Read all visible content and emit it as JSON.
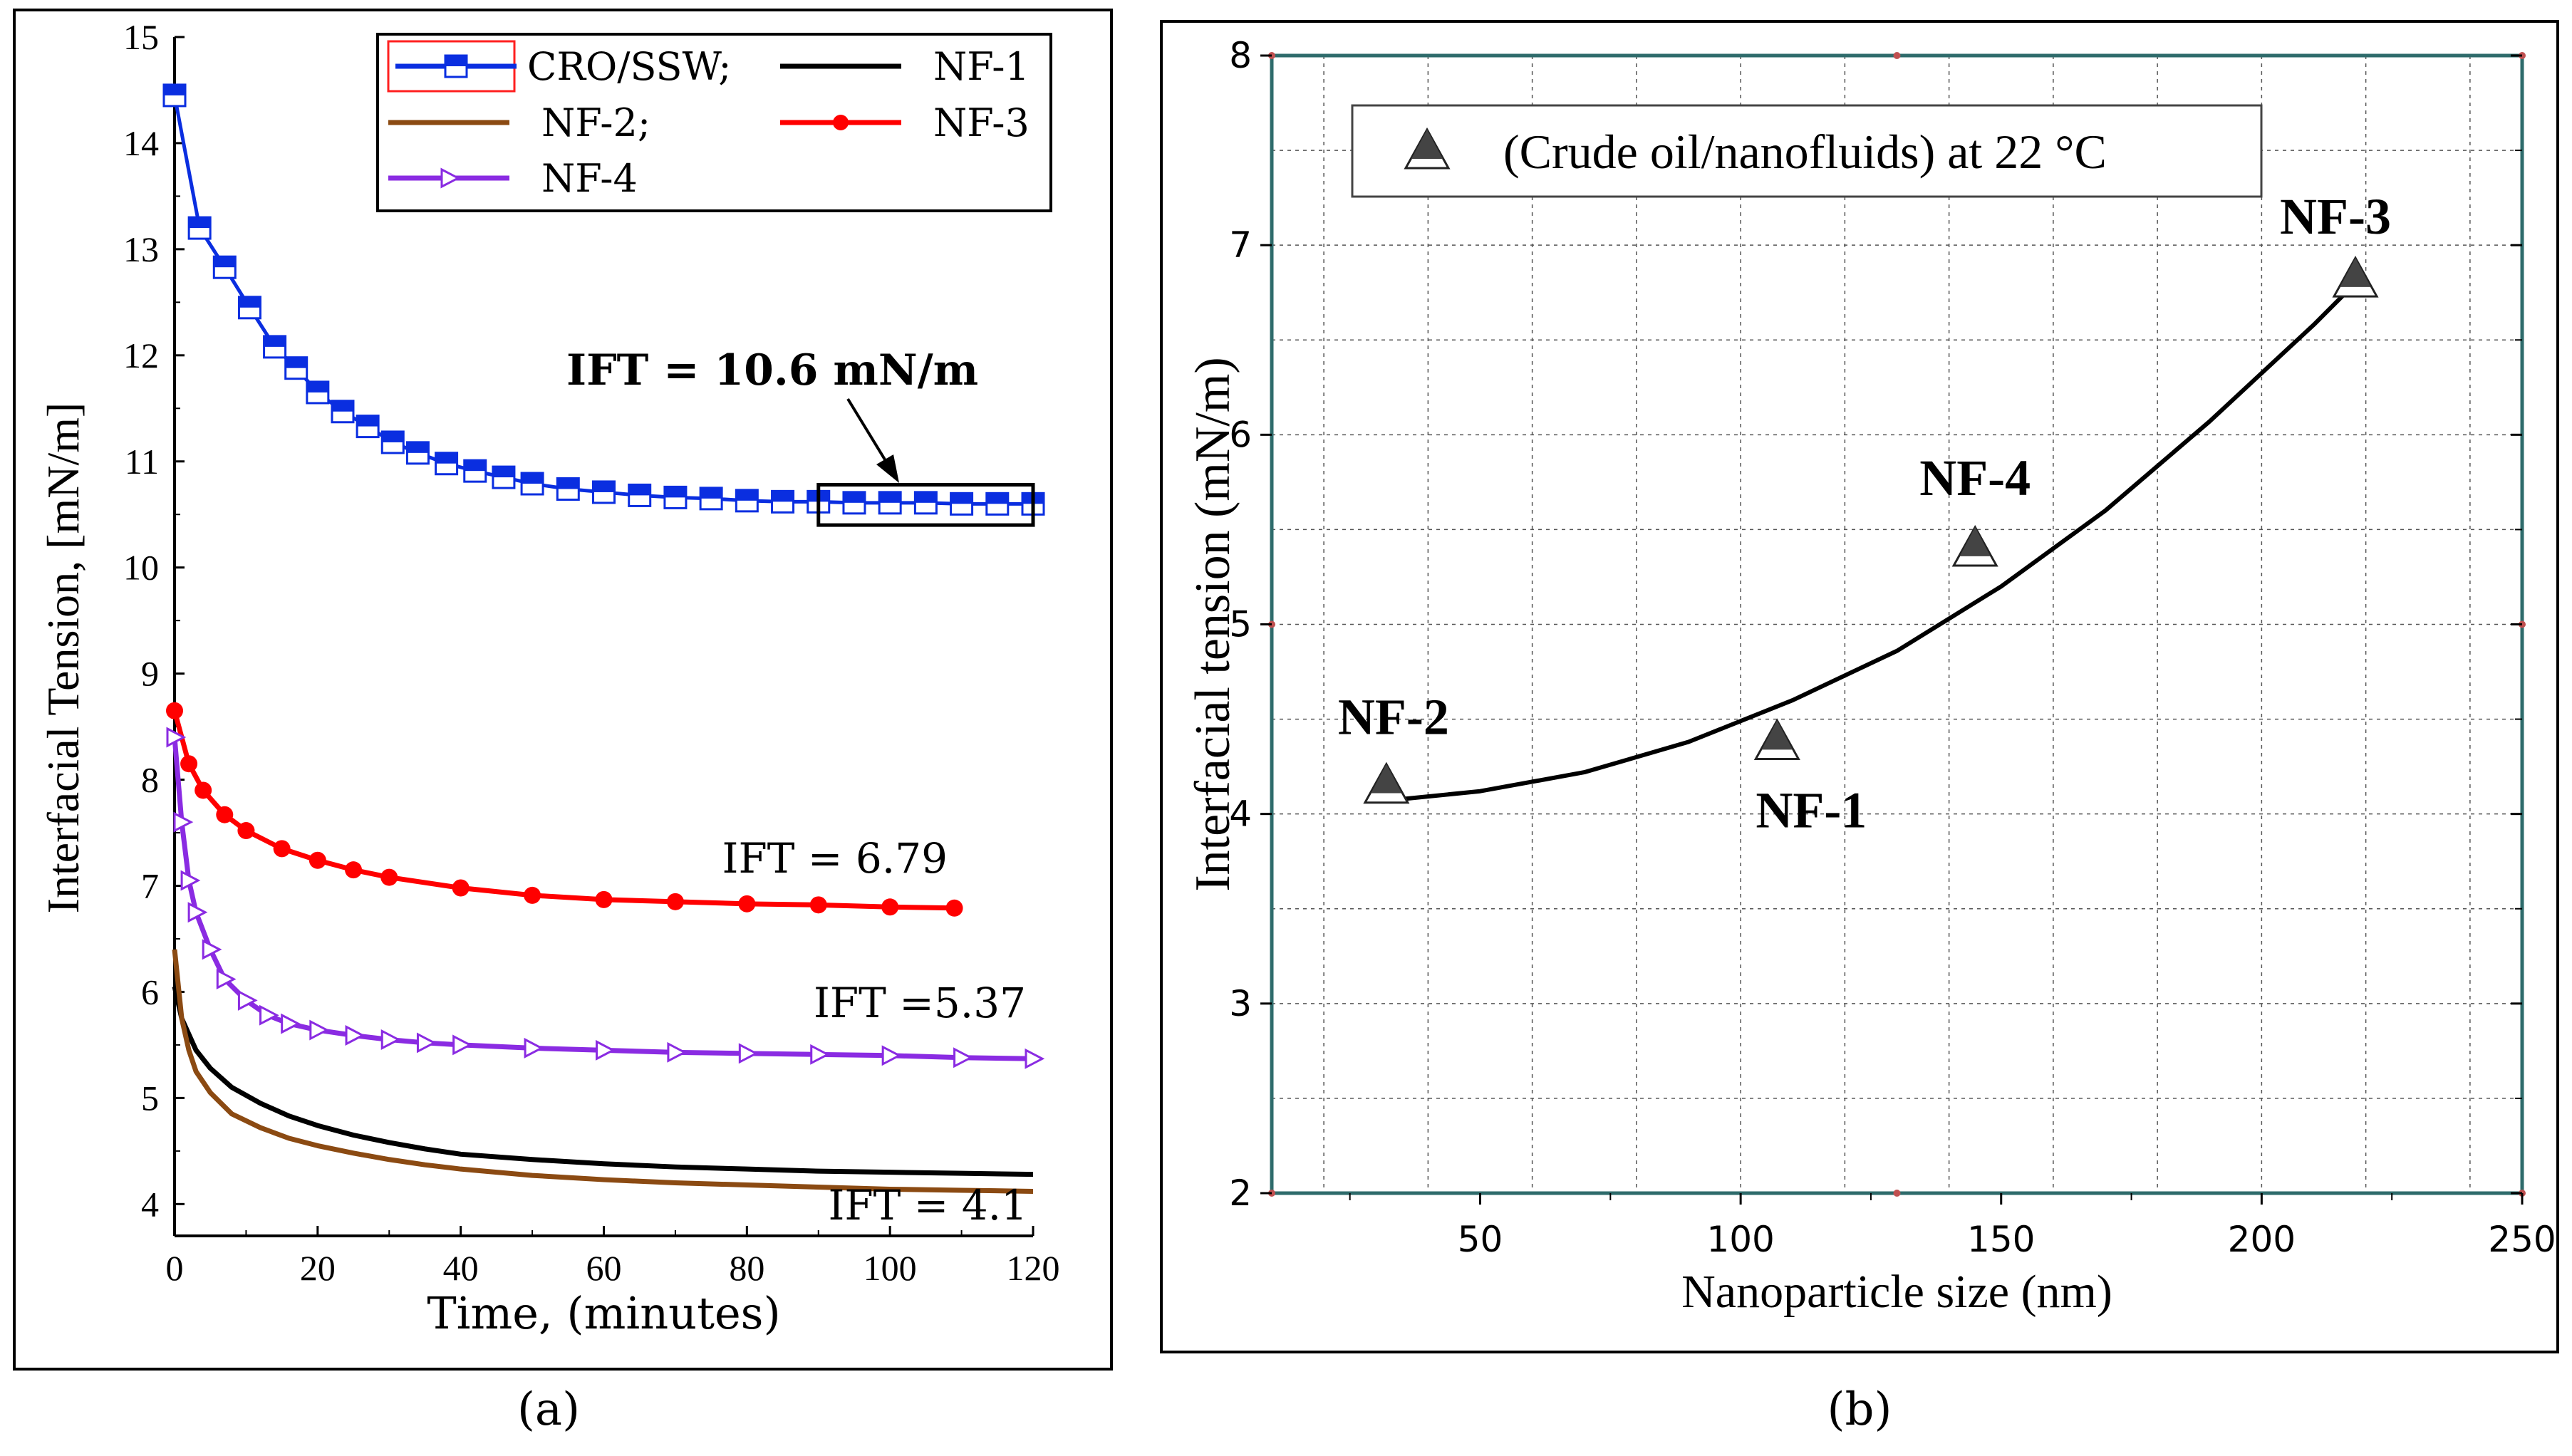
{
  "figure": {
    "label_a": "(a)",
    "label_b": "(b)"
  },
  "chart_data": [
    {
      "id": "a",
      "type": "line",
      "xlabel": "Time, (minutes)",
      "ylabel": "Interfacial Tension, [mN/m]",
      "xlim": [
        0,
        120
      ],
      "ylim": [
        3.7,
        15
      ],
      "xticks": [
        0,
        20,
        40,
        60,
        80,
        100,
        120
      ],
      "yticks": [
        4,
        5,
        6,
        7,
        8,
        9,
        10,
        11,
        12,
        13,
        14,
        15
      ],
      "grid": false,
      "legend_position": "top-right",
      "series": [
        {
          "name": "CRO/SSW;",
          "color": "#0a2ee0",
          "marker": "half-filled-square",
          "x": [
            0,
            3.5,
            7,
            10.5,
            14,
            17,
            20,
            23.5,
            27,
            30.5,
            34,
            38,
            42,
            46,
            50,
            55,
            60,
            65,
            70,
            75,
            80,
            85,
            90,
            95,
            100,
            105,
            110,
            115,
            120
          ],
          "y": [
            14.45,
            13.2,
            12.83,
            12.45,
            12.08,
            11.88,
            11.65,
            11.47,
            11.33,
            11.18,
            11.08,
            10.98,
            10.91,
            10.85,
            10.79,
            10.74,
            10.71,
            10.68,
            10.66,
            10.65,
            10.63,
            10.62,
            10.62,
            10.61,
            10.61,
            10.61,
            10.6,
            10.6,
            10.6
          ]
        },
        {
          "name": "NF-1",
          "color": "#000000",
          "marker": "none",
          "x": [
            0,
            1,
            2,
            3,
            5,
            8,
            12,
            16,
            20,
            25,
            30,
            35,
            40,
            50,
            60,
            70,
            80,
            90,
            100,
            110,
            120
          ],
          "y": [
            6.05,
            5.75,
            5.6,
            5.45,
            5.28,
            5.1,
            4.95,
            4.83,
            4.74,
            4.65,
            4.58,
            4.52,
            4.47,
            4.42,
            4.38,
            4.35,
            4.33,
            4.31,
            4.3,
            4.29,
            4.28
          ]
        },
        {
          "name": "NF-2;",
          "color": "#8b4a12",
          "marker": "none",
          "x": [
            0,
            1,
            2,
            3,
            5,
            8,
            12,
            16,
            20,
            25,
            30,
            35,
            40,
            50,
            60,
            70,
            80,
            90,
            100,
            110,
            120
          ],
          "y": [
            6.4,
            5.75,
            5.45,
            5.25,
            5.05,
            4.85,
            4.72,
            4.62,
            4.55,
            4.48,
            4.42,
            4.37,
            4.33,
            4.27,
            4.23,
            4.2,
            4.18,
            4.16,
            4.14,
            4.13,
            4.12
          ]
        },
        {
          "name": "NF-3",
          "color": "#ff0000",
          "marker": "circle",
          "x": [
            0,
            2,
            4,
            7,
            10,
            15,
            20,
            25,
            30,
            40,
            50,
            60,
            70,
            80,
            90,
            100,
            109
          ],
          "y": [
            8.65,
            8.15,
            7.9,
            7.67,
            7.52,
            7.35,
            7.24,
            7.15,
            7.08,
            6.98,
            6.91,
            6.87,
            6.85,
            6.83,
            6.82,
            6.8,
            6.79
          ]
        },
        {
          "name": "NF-4",
          "color": "#8a2be2",
          "marker": "triangle-right",
          "x": [
            0,
            1,
            2,
            3,
            5,
            7,
            10,
            13,
            16,
            20,
            25,
            30,
            35,
            40,
            50,
            60,
            70,
            80,
            90,
            100,
            110,
            120
          ],
          "y": [
            8.4,
            7.6,
            7.05,
            6.75,
            6.4,
            6.12,
            5.92,
            5.78,
            5.7,
            5.64,
            5.59,
            5.55,
            5.52,
            5.5,
            5.47,
            5.45,
            5.43,
            5.42,
            5.41,
            5.4,
            5.38,
            5.37
          ]
        }
      ],
      "annotations": [
        {
          "text": "IFT = 10.6 mN/m",
          "bold": true
        },
        {
          "text": "IFT = 6.79"
        },
        {
          "text": "IFT =5.37"
        },
        {
          "text": "IFT = 4.1"
        }
      ],
      "box_highlight": {
        "x_range": [
          90,
          120
        ],
        "y_range": [
          10.4,
          10.78
        ]
      }
    },
    {
      "id": "b",
      "type": "scatter",
      "xlabel": "Nanoparticle size (nm)",
      "ylabel": "Interfacial tension (mN/m)",
      "xlim": [
        10,
        250
      ],
      "ylim": [
        2,
        8
      ],
      "xticks": [
        50,
        100,
        150,
        200,
        250
      ],
      "yticks": [
        2,
        3,
        4,
        5,
        6,
        7,
        8
      ],
      "grid": true,
      "legend_position": "top-left",
      "legend": "(Crude oil/nanofluids) at 22 °C",
      "points": [
        {
          "label": "NF-2",
          "x": 32,
          "y": 4.15
        },
        {
          "label": "NF-1",
          "x": 107,
          "y": 4.38
        },
        {
          "label": "NF-4",
          "x": 145,
          "y": 5.4
        },
        {
          "label": "NF-3",
          "x": 218,
          "y": 6.82
        }
      ],
      "fit_curve": {
        "x": [
          32,
          50,
          70,
          90,
          110,
          130,
          150,
          170,
          190,
          210,
          218
        ],
        "y": [
          4.07,
          4.12,
          4.22,
          4.38,
          4.6,
          4.86,
          5.2,
          5.6,
          6.07,
          6.58,
          6.8
        ]
      }
    }
  ]
}
